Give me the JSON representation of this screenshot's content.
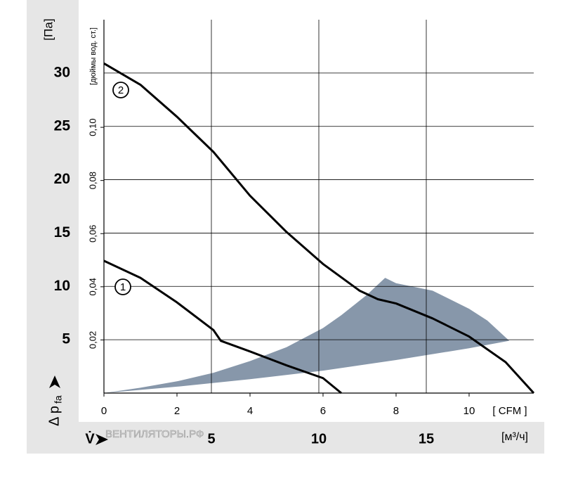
{
  "chart_data": {
    "type": "line",
    "y_label": "[Па]",
    "y2_label": "[дюймы вод. ст.]",
    "y_axis_title": "Δ p",
    "y_axis_title_sub": "fa",
    "x_label": "[ CFM ]",
    "x2_label": "[м³/ч]",
    "x2_axis_title": "V̇",
    "watermark": "ВЕНТИЛЯТОРЫ.РФ",
    "xlim": [
      0,
      11.77
    ],
    "xticks": [
      0,
      2,
      4,
      6,
      8,
      10
    ],
    "x2lim": [
      0,
      20
    ],
    "x2ticks": [
      5,
      10,
      15
    ],
    "ylim": [
      0,
      35
    ],
    "yticks": [
      5,
      10,
      15,
      20,
      25,
      30
    ],
    "y2lim": [
      0,
      0.1405
    ],
    "y2ticks": [
      {
        "value": 0.02,
        "label": "0,02"
      },
      {
        "value": 0.04,
        "label": "0,04"
      },
      {
        "value": 0.06,
        "label": "0,06"
      },
      {
        "value": 0.08,
        "label": "0,08"
      },
      {
        "value": 0.1,
        "label": "0,10"
      }
    ],
    "grid": true,
    "series": [
      {
        "name": "1",
        "color": "#000000",
        "x": [
          0,
          1,
          2,
          3,
          3.2,
          4,
          5,
          6,
          6.5
        ],
        "values": [
          12.4,
          10.8,
          8.5,
          5.9,
          4.9,
          3.9,
          2.6,
          1.4,
          0
        ]
      },
      {
        "name": "2",
        "color": "#000000",
        "x": [
          0,
          1,
          2,
          3,
          4,
          5,
          6,
          7,
          7.5,
          8,
          9,
          10,
          11,
          11.77
        ],
        "values": [
          30.9,
          28.9,
          25.9,
          22.6,
          18.5,
          15.1,
          12.1,
          9.6,
          8.8,
          8.4,
          7.0,
          5.3,
          2.9,
          0
        ]
      }
    ],
    "region": {
      "color": "#8797aa",
      "x": [
        0,
        2,
        4,
        6,
        8,
        10,
        11.1,
        10.5,
        10,
        9,
        8,
        7.7,
        7.2,
        6.5,
        6,
        5,
        4,
        3,
        2,
        1
      ],
      "values": [
        0,
        0.6,
        1.3,
        2.1,
        3.1,
        4.2,
        4.9,
        6.8,
        7.9,
        9.6,
        10.3,
        10.8,
        9.2,
        7.3,
        6.1,
        4.3,
        3.0,
        1.9,
        1.1,
        0.5
      ]
    }
  }
}
